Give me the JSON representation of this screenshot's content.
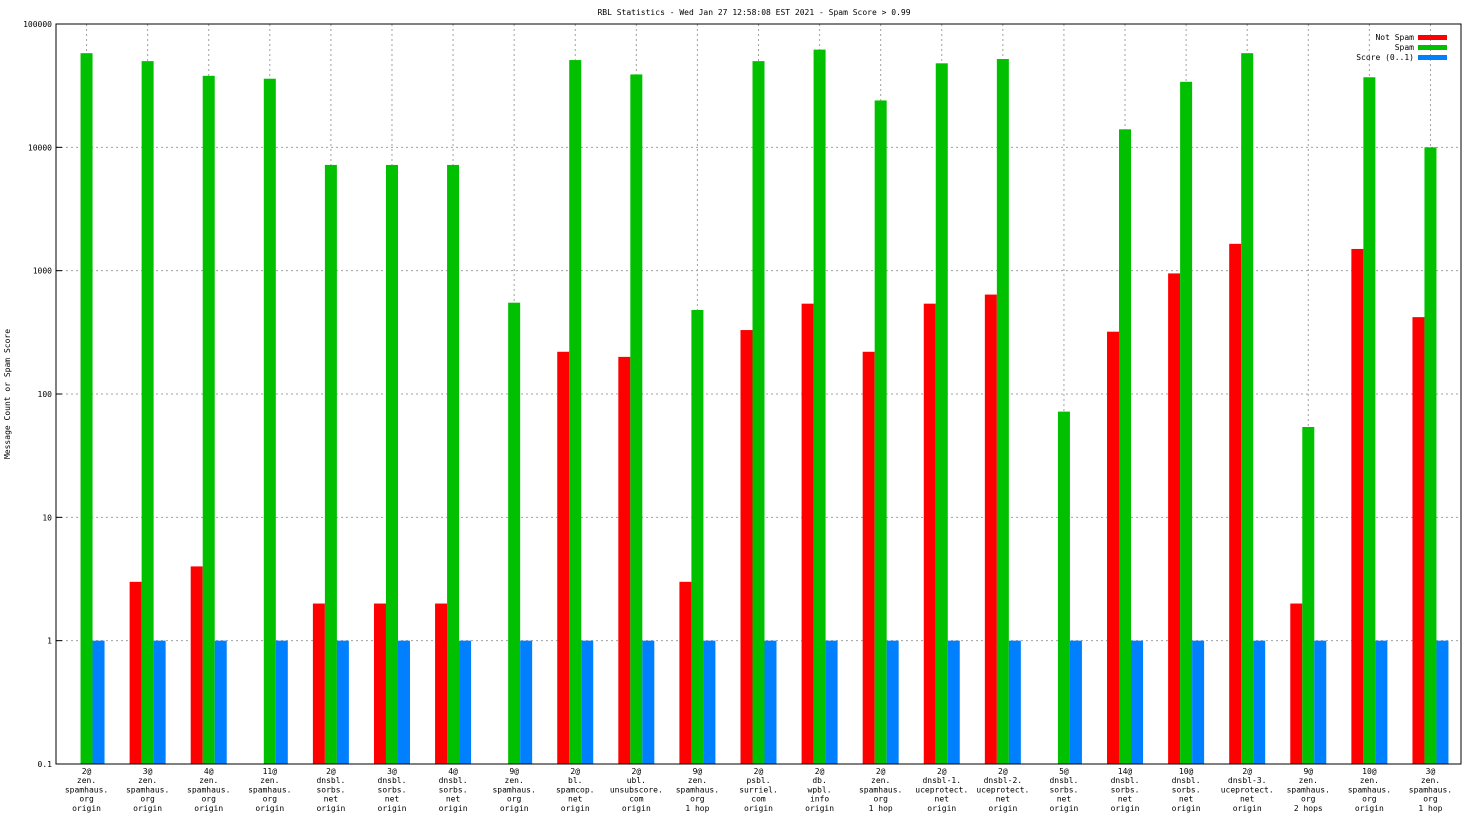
{
  "chart_data": {
    "type": "bar",
    "title": "RBL Statistics - Wed Jan 27 12:58:08 EST 2021 - Spam Score > 0.99",
    "ylabel": "Message Count or Spam Score",
    "xlabel": "",
    "yscale": "log",
    "ylim": [
      0.1,
      100000
    ],
    "yticks": [
      0.1,
      1,
      10,
      100,
      1000,
      10000,
      100000
    ],
    "ytick_labels": [
      "0.1",
      "1",
      "10",
      "100",
      "1000",
      "10000",
      "100000"
    ],
    "grid": true,
    "legend_position": "top-right",
    "categories": [
      [
        "2@",
        "zen.",
        "spamhaus.",
        "org",
        "origin"
      ],
      [
        "3@",
        "zen.",
        "spamhaus.",
        "org",
        "origin"
      ],
      [
        "4@",
        "zen.",
        "spamhaus.",
        "org",
        "origin"
      ],
      [
        "11@",
        "zen.",
        "spamhaus.",
        "org",
        "origin"
      ],
      [
        "2@",
        "dnsbl.",
        "sorbs.",
        "net",
        "origin"
      ],
      [
        "3@",
        "dnsbl.",
        "sorbs.",
        "net",
        "origin"
      ],
      [
        "4@",
        "dnsbl.",
        "sorbs.",
        "net",
        "origin"
      ],
      [
        "9@",
        "zen.",
        "spamhaus.",
        "org",
        "origin"
      ],
      [
        "2@",
        "bl.",
        "spamcop.",
        "net",
        "origin"
      ],
      [
        "2@",
        "ubl.",
        "unsubscore.",
        "com",
        "origin"
      ],
      [
        "9@",
        "zen.",
        "spamhaus.",
        "org",
        "1 hop"
      ],
      [
        "2@",
        "psbl.",
        "surriel.",
        "com",
        "origin"
      ],
      [
        "2@",
        "db.",
        "wpbl.",
        "info",
        "origin"
      ],
      [
        "2@",
        "zen.",
        "spamhaus.",
        "org",
        "1 hop"
      ],
      [
        "2@",
        "dnsbl-1.",
        "uceprotect.",
        "net",
        "origin"
      ],
      [
        "2@",
        "dnsbl-2.",
        "uceprotect.",
        "net",
        "origin"
      ],
      [
        "5@",
        "dnsbl.",
        "sorbs.",
        "net",
        "origin"
      ],
      [
        "14@",
        "dnsbl.",
        "sorbs.",
        "net",
        "origin"
      ],
      [
        "10@",
        "dnsbl.",
        "sorbs.",
        "net",
        "origin"
      ],
      [
        "2@",
        "dnsbl-3.",
        "uceprotect.",
        "net",
        "origin"
      ],
      [
        "9@",
        "zen.",
        "spamhaus.",
        "org",
        "2 hops"
      ],
      [
        "10@",
        "zen.",
        "spamhaus.",
        "org",
        "origin"
      ],
      [
        "3@",
        "zen.",
        "spamhaus.",
        "org",
        "1 hop"
      ]
    ],
    "series": [
      {
        "name": "Not Spam",
        "color": "#ff0000",
        "values": [
          null,
          3,
          4,
          null,
          2,
          2,
          2,
          null,
          220,
          200,
          3,
          330,
          540,
          220,
          540,
          640,
          null,
          320,
          950,
          1650,
          2,
          1500,
          420
        ]
      },
      {
        "name": "Spam",
        "color": "#00c000",
        "values": [
          58000,
          50000,
          38000,
          36000,
          7200,
          7200,
          7200,
          550,
          51000,
          39000,
          480,
          50000,
          62000,
          24000,
          48000,
          52000,
          72,
          14000,
          34000,
          58000,
          54,
          37000,
          10000
        ]
      },
      {
        "name": "Score (0..1)",
        "color": "#0080ff",
        "values": [
          1,
          1,
          1,
          1,
          1,
          1,
          1,
          1,
          1,
          1,
          1,
          1,
          1,
          1,
          1,
          1,
          1,
          1,
          1,
          1,
          1,
          1,
          1
        ]
      }
    ]
  }
}
